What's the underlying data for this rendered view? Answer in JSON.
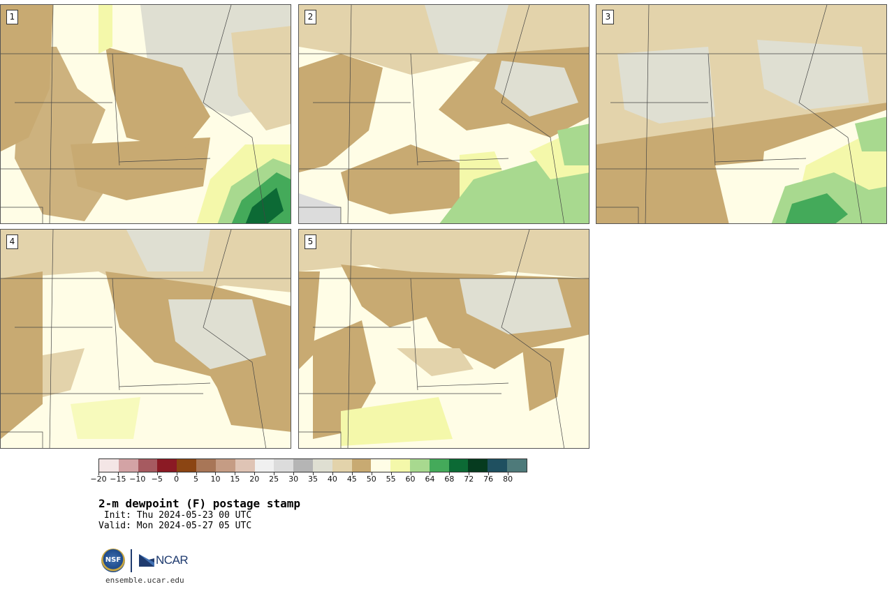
{
  "panels": [
    {
      "number": "1"
    },
    {
      "number": "2"
    },
    {
      "number": "3"
    },
    {
      "number": "4"
    },
    {
      "number": "5"
    }
  ],
  "colorbar": {
    "colors": [
      "#f4e6e6",
      "#d3a3a5",
      "#a65a60",
      "#8b1a24",
      "#8b4513",
      "#a87657",
      "#c59c84",
      "#dfc4b5",
      "#f0f0f0",
      "#dcdcdc",
      "#b5b5b5",
      "#dfdfd2",
      "#e3d3ab",
      "#c8aa72",
      "#fffde6",
      "#f4f8aa",
      "#a8d98f",
      "#44aa5a",
      "#0c6a35",
      "#063b1f",
      "#1f5060",
      "#4e7a7a"
    ],
    "labels": [
      "−20",
      "−15",
      "−10",
      "−5",
      "0",
      "5",
      "10",
      "15",
      "20",
      "25",
      "30",
      "35",
      "40",
      "45",
      "50",
      "55",
      "60",
      "64",
      "68",
      "72",
      "76",
      "80"
    ]
  },
  "title": "2-m dewpoint (F) postage stamp",
  "init": " Init: Thu 2024-05-23 00 UTC",
  "valid": "Valid: Mon 2024-05-27 05 UTC",
  "logo": {
    "nsf": "NSF",
    "ncar": "NCAR"
  },
  "website": "ensemble.ucar.edu"
}
